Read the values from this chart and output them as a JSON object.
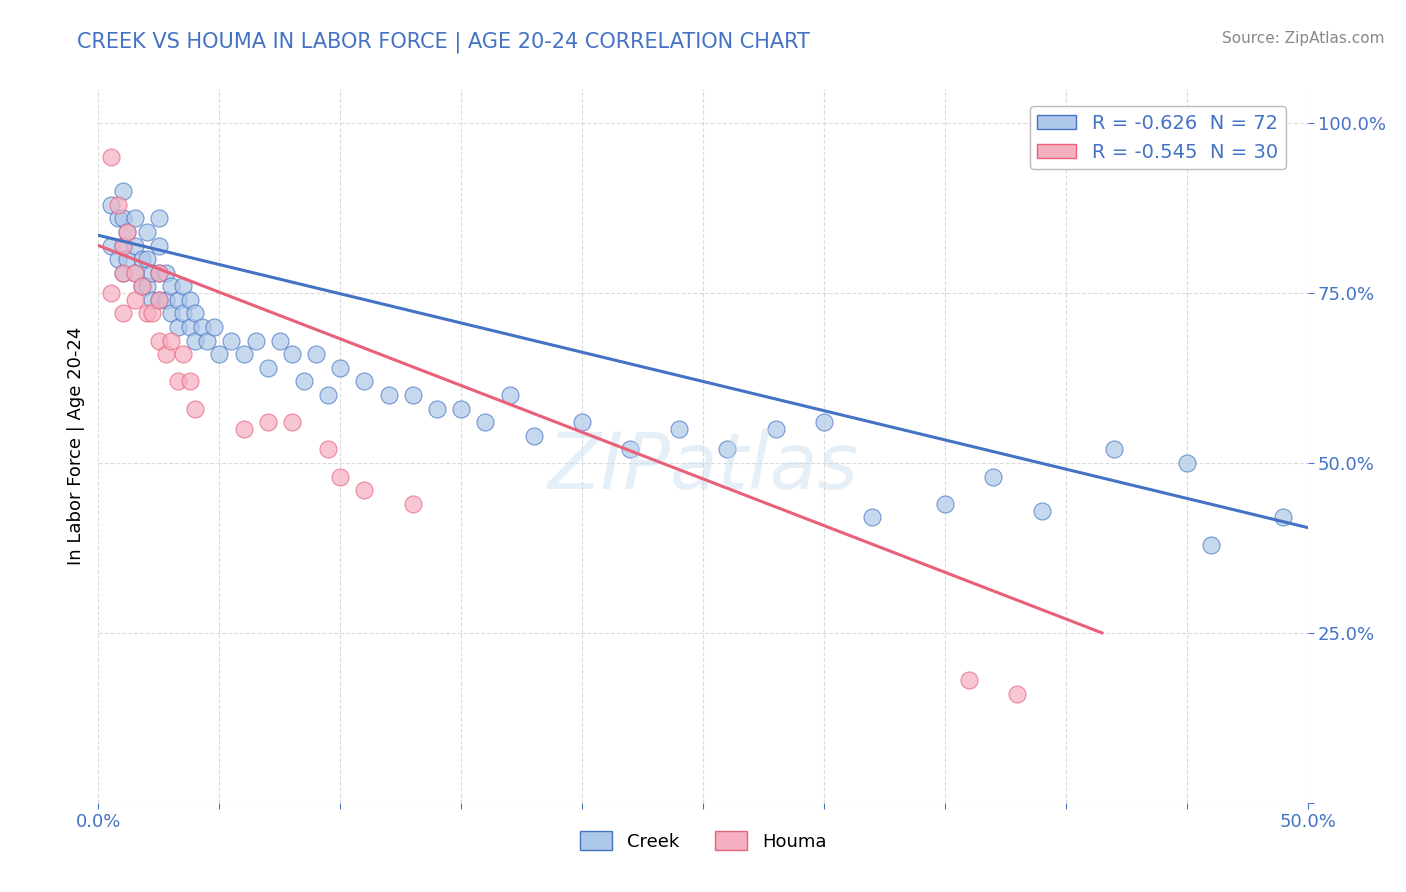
{
  "title": "CREEK VS HOUMA IN LABOR FORCE | AGE 20-24 CORRELATION CHART",
  "source_text": "Source: ZipAtlas.com",
  "ylabel": "In Labor Force | Age 20-24",
  "xlim": [
    0.0,
    0.5
  ],
  "ylim": [
    0.0,
    1.05
  ],
  "legend_creek": "R = -0.626  N = 72",
  "legend_houma": "R = -0.545  N = 30",
  "creek_color": "#adc8e8",
  "houma_color": "#f5afc0",
  "creek_line_color": "#4472c4",
  "houma_line_color": "#e8607a",
  "background_color": "#ffffff",
  "grid_color": "#cccccc",
  "title_color": "#4472c4",
  "creek_scatter_x": [
    0.005,
    0.005,
    0.008,
    0.008,
    0.01,
    0.01,
    0.01,
    0.01,
    0.012,
    0.012,
    0.015,
    0.015,
    0.015,
    0.018,
    0.018,
    0.02,
    0.02,
    0.02,
    0.022,
    0.022,
    0.025,
    0.025,
    0.025,
    0.025,
    0.028,
    0.028,
    0.03,
    0.03,
    0.033,
    0.033,
    0.035,
    0.035,
    0.038,
    0.038,
    0.04,
    0.04,
    0.043,
    0.045,
    0.048,
    0.05,
    0.055,
    0.06,
    0.065,
    0.07,
    0.075,
    0.08,
    0.085,
    0.09,
    0.095,
    0.1,
    0.11,
    0.12,
    0.13,
    0.14,
    0.15,
    0.16,
    0.17,
    0.18,
    0.2,
    0.22,
    0.24,
    0.26,
    0.28,
    0.3,
    0.32,
    0.35,
    0.37,
    0.39,
    0.42,
    0.45,
    0.46,
    0.49
  ],
  "creek_scatter_y": [
    0.82,
    0.88,
    0.8,
    0.86,
    0.78,
    0.82,
    0.86,
    0.9,
    0.8,
    0.84,
    0.78,
    0.82,
    0.86,
    0.76,
    0.8,
    0.76,
    0.8,
    0.84,
    0.74,
    0.78,
    0.74,
    0.78,
    0.82,
    0.86,
    0.74,
    0.78,
    0.72,
    0.76,
    0.7,
    0.74,
    0.72,
    0.76,
    0.7,
    0.74,
    0.68,
    0.72,
    0.7,
    0.68,
    0.7,
    0.66,
    0.68,
    0.66,
    0.68,
    0.64,
    0.68,
    0.66,
    0.62,
    0.66,
    0.6,
    0.64,
    0.62,
    0.6,
    0.6,
    0.58,
    0.58,
    0.56,
    0.6,
    0.54,
    0.56,
    0.52,
    0.55,
    0.52,
    0.55,
    0.56,
    0.42,
    0.44,
    0.48,
    0.43,
    0.52,
    0.5,
    0.38,
    0.42
  ],
  "houma_scatter_x": [
    0.005,
    0.005,
    0.008,
    0.01,
    0.01,
    0.01,
    0.012,
    0.015,
    0.015,
    0.018,
    0.02,
    0.022,
    0.025,
    0.025,
    0.025,
    0.028,
    0.03,
    0.033,
    0.035,
    0.038,
    0.04,
    0.06,
    0.07,
    0.08,
    0.095,
    0.1,
    0.11,
    0.13,
    0.36,
    0.38
  ],
  "houma_scatter_y": [
    0.95,
    0.75,
    0.88,
    0.82,
    0.78,
    0.72,
    0.84,
    0.78,
    0.74,
    0.76,
    0.72,
    0.72,
    0.78,
    0.68,
    0.74,
    0.66,
    0.68,
    0.62,
    0.66,
    0.62,
    0.58,
    0.55,
    0.56,
    0.56,
    0.52,
    0.48,
    0.46,
    0.44,
    0.18,
    0.16
  ],
  "creek_line_x": [
    0.0,
    0.5
  ],
  "creek_line_y": [
    0.835,
    0.405
  ],
  "houma_line_x": [
    0.0,
    0.415
  ],
  "houma_line_y": [
    0.82,
    0.25
  ]
}
